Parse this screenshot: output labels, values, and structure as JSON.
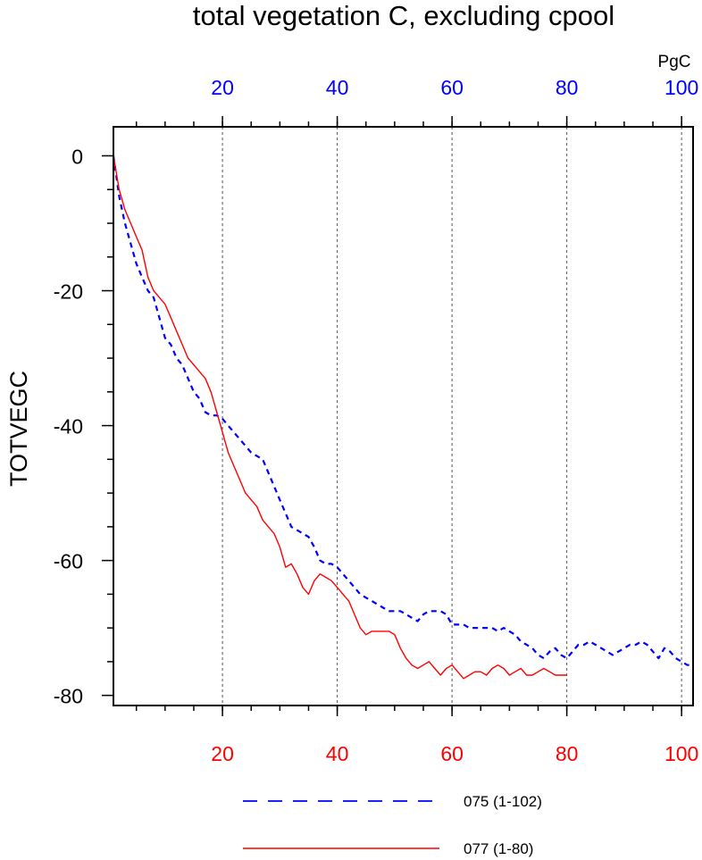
{
  "chart_data": {
    "type": "line",
    "title": "total vegetation C, excluding cpool",
    "ylabel": "TOTVEGC",
    "units": "PgC",
    "xlim": [
      1,
      102
    ],
    "ylim": [
      -81.5,
      4.3
    ],
    "grid": "vertical dotted lines at x = 20, 40, 60, 80, 100",
    "legend_position": "bottom",
    "y_ticks": [
      0,
      -20,
      -40,
      -60,
      -80
    ],
    "top_axis": {
      "color": "#0000ff",
      "ticks": [
        20,
        40,
        60,
        80,
        100
      ]
    },
    "bottom_axis": {
      "color": "#ff0000",
      "ticks": [
        20,
        40,
        60,
        80,
        100
      ]
    },
    "series": [
      {
        "name": "075 (1-102)",
        "color": "#0000ff",
        "dash": "dashed",
        "axis": "top",
        "x": [
          1,
          2,
          3,
          4,
          5,
          6,
          7,
          8,
          9,
          10,
          11,
          12,
          13,
          14,
          15,
          16,
          17,
          18,
          19,
          20,
          21,
          22,
          23,
          24,
          25,
          26,
          27,
          28,
          29,
          30,
          31,
          32,
          33,
          34,
          35,
          36,
          37,
          38,
          39,
          40,
          41,
          42,
          43,
          44,
          45,
          46,
          47,
          48,
          49,
          50,
          51,
          52,
          53,
          54,
          55,
          56,
          57,
          58,
          59,
          60,
          61,
          62,
          63,
          64,
          65,
          66,
          67,
          68,
          69,
          70,
          71,
          72,
          73,
          74,
          75,
          76,
          77,
          78,
          79,
          80,
          81,
          82,
          83,
          84,
          85,
          86,
          87,
          88,
          89,
          90,
          91,
          92,
          93,
          94,
          95,
          96,
          97,
          98,
          99,
          100,
          101,
          102
        ],
        "y": [
          0,
          -6,
          -10,
          -13,
          -16,
          -18,
          -20,
          -21,
          -24,
          -27,
          -28,
          -30,
          -31,
          -33,
          -35,
          -36,
          -38,
          -38.5,
          -38.5,
          -39,
          -40,
          -41,
          -42,
          -43,
          -44,
          -44.5,
          -45,
          -47,
          -49,
          -51,
          -53,
          -55,
          -55.5,
          -56,
          -56.5,
          -58,
          -60,
          -60.5,
          -60.5,
          -61,
          -62,
          -63,
          -64,
          -65,
          -65.5,
          -66,
          -66.5,
          -67,
          -67.5,
          -67.5,
          -67.5,
          -68,
          -68.5,
          -69,
          -68,
          -67.5,
          -67.5,
          -67.5,
          -68,
          -69.5,
          -69.5,
          -69.5,
          -70,
          -70,
          -70,
          -70,
          -70,
          -70.5,
          -70,
          -70.5,
          -71,
          -72,
          -72.5,
          -73,
          -74,
          -74.5,
          -73.5,
          -73,
          -74,
          -74.5,
          -73.5,
          -72.5,
          -72.5,
          -72,
          -72.5,
          -73,
          -73.5,
          -74,
          -73.5,
          -73,
          -72.5,
          -72.5,
          -72,
          -72.5,
          -73.5,
          -74.5,
          -73,
          -73.5,
          -74.5,
          -75,
          -75.5,
          -75.5
        ]
      },
      {
        "name": "077 (1-80)",
        "color": "#ff0000",
        "dash": "solid",
        "axis": "bottom",
        "x": [
          1,
          2,
          3,
          4,
          5,
          6,
          7,
          8,
          9,
          10,
          11,
          12,
          13,
          14,
          15,
          16,
          17,
          18,
          19,
          20,
          21,
          22,
          23,
          24,
          25,
          26,
          27,
          28,
          29,
          30,
          31,
          32,
          33,
          34,
          35,
          36,
          37,
          38,
          39,
          40,
          41,
          42,
          43,
          44,
          45,
          46,
          47,
          48,
          49,
          50,
          51,
          52,
          53,
          54,
          55,
          56,
          57,
          58,
          59,
          60,
          61,
          62,
          63,
          64,
          65,
          66,
          67,
          68,
          69,
          70,
          71,
          72,
          73,
          74,
          75,
          76,
          77,
          78,
          79,
          80
        ],
        "y": [
          0,
          -5,
          -8,
          -10,
          -12,
          -14,
          -18,
          -20,
          -21,
          -22,
          -24,
          -26,
          -28,
          -30,
          -31,
          -32,
          -33,
          -35,
          -38,
          -41,
          -44,
          -46,
          -48,
          -50,
          -51,
          -52,
          -54,
          -55,
          -56,
          -58,
          -61,
          -60.5,
          -62,
          -64,
          -65,
          -63,
          -62,
          -62.5,
          -63,
          -64,
          -65,
          -66,
          -68,
          -70,
          -71,
          -70.5,
          -70.5,
          -70.5,
          -70.5,
          -71,
          -73,
          -74.5,
          -75.5,
          -76,
          -75.5,
          -75,
          -76,
          -77,
          -76,
          -75.5,
          -76.5,
          -77.5,
          -77,
          -76.5,
          -76.5,
          -77,
          -76,
          -75.5,
          -76,
          -77,
          -76.5,
          -76,
          -77,
          -77,
          -76.5,
          -76,
          -76.5,
          -77,
          -77,
          -77
        ]
      }
    ]
  }
}
